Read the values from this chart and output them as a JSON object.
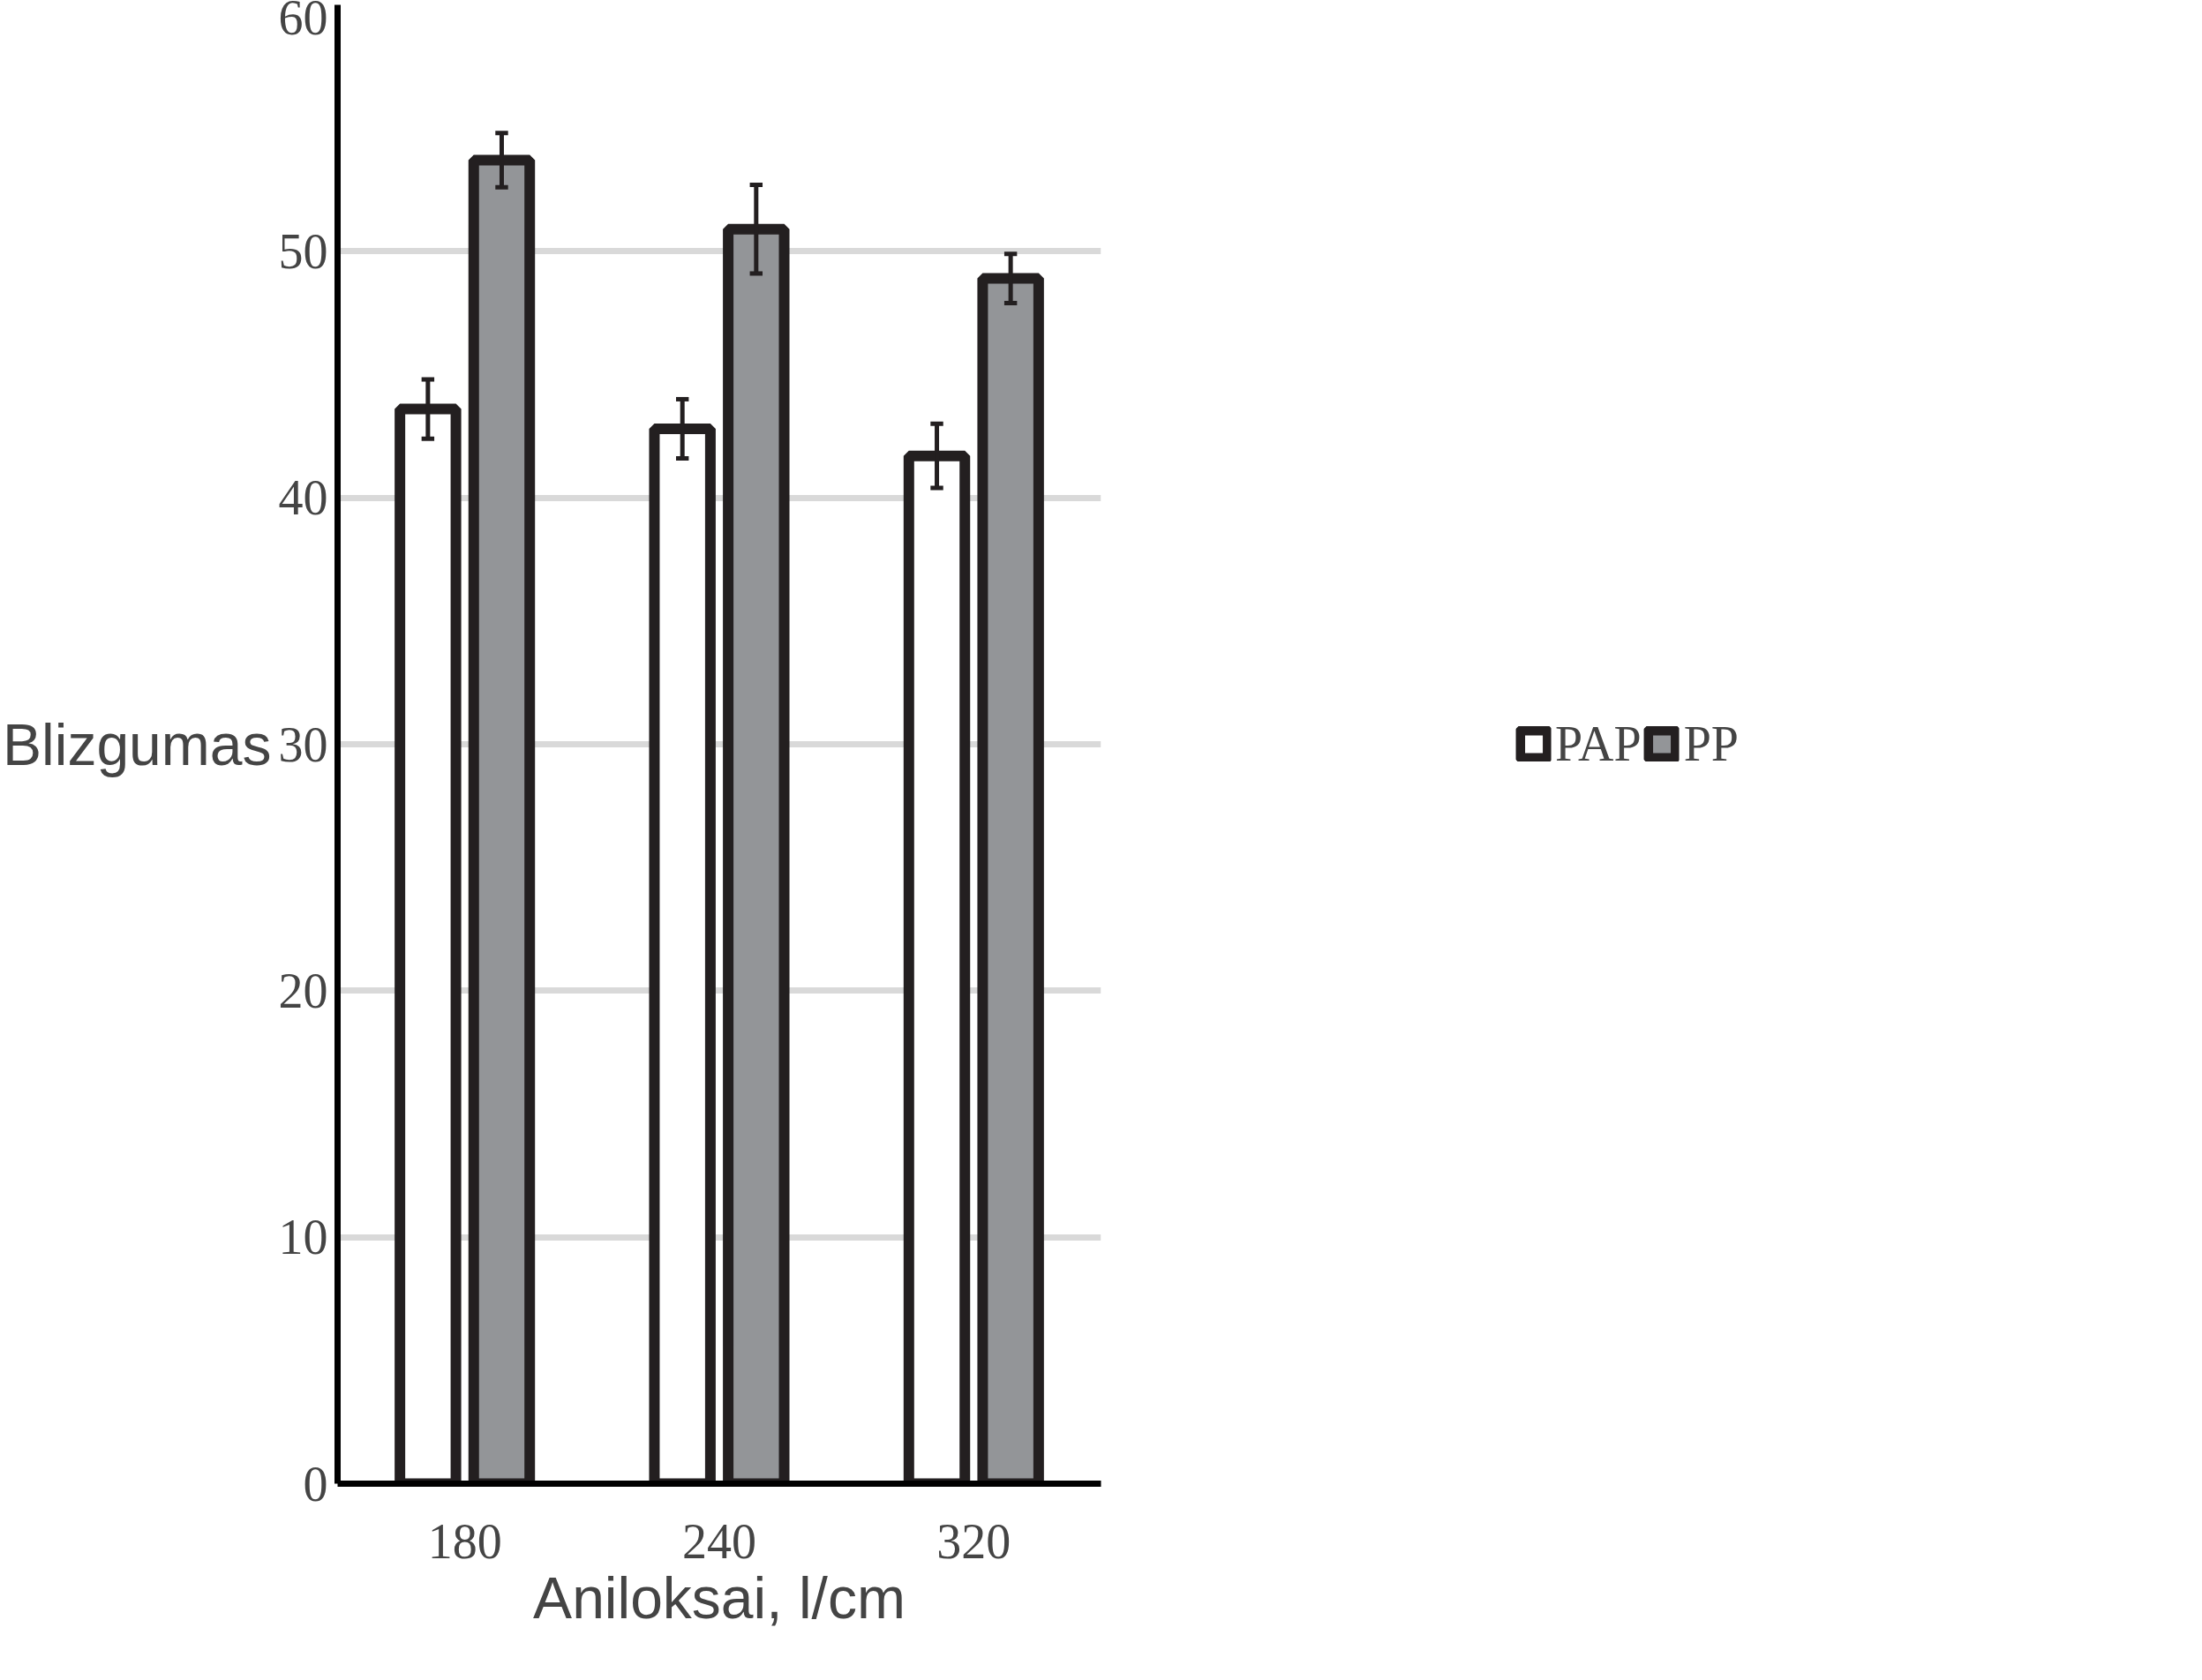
{
  "chart_data": {
    "type": "bar",
    "xlabel": "Aniloksai, l/cm",
    "ylabel": "Blizgumas",
    "categories": [
      "180",
      "240",
      "320"
    ],
    "series": [
      {
        "name": "PAP",
        "color": "#ffffff",
        "values": [
          43.6,
          42.8,
          41.7
        ],
        "errors": [
          1.2,
          1.2,
          1.3
        ]
      },
      {
        "name": "PP",
        "color": "#939598",
        "values": [
          53.7,
          50.9,
          48.9
        ],
        "errors": [
          1.1,
          1.8,
          1.0
        ]
      }
    ],
    "ylim": [
      0,
      60
    ],
    "yticks": [
      0,
      10,
      20,
      30,
      40,
      50,
      60
    ],
    "grid": "y",
    "legend": "right"
  }
}
